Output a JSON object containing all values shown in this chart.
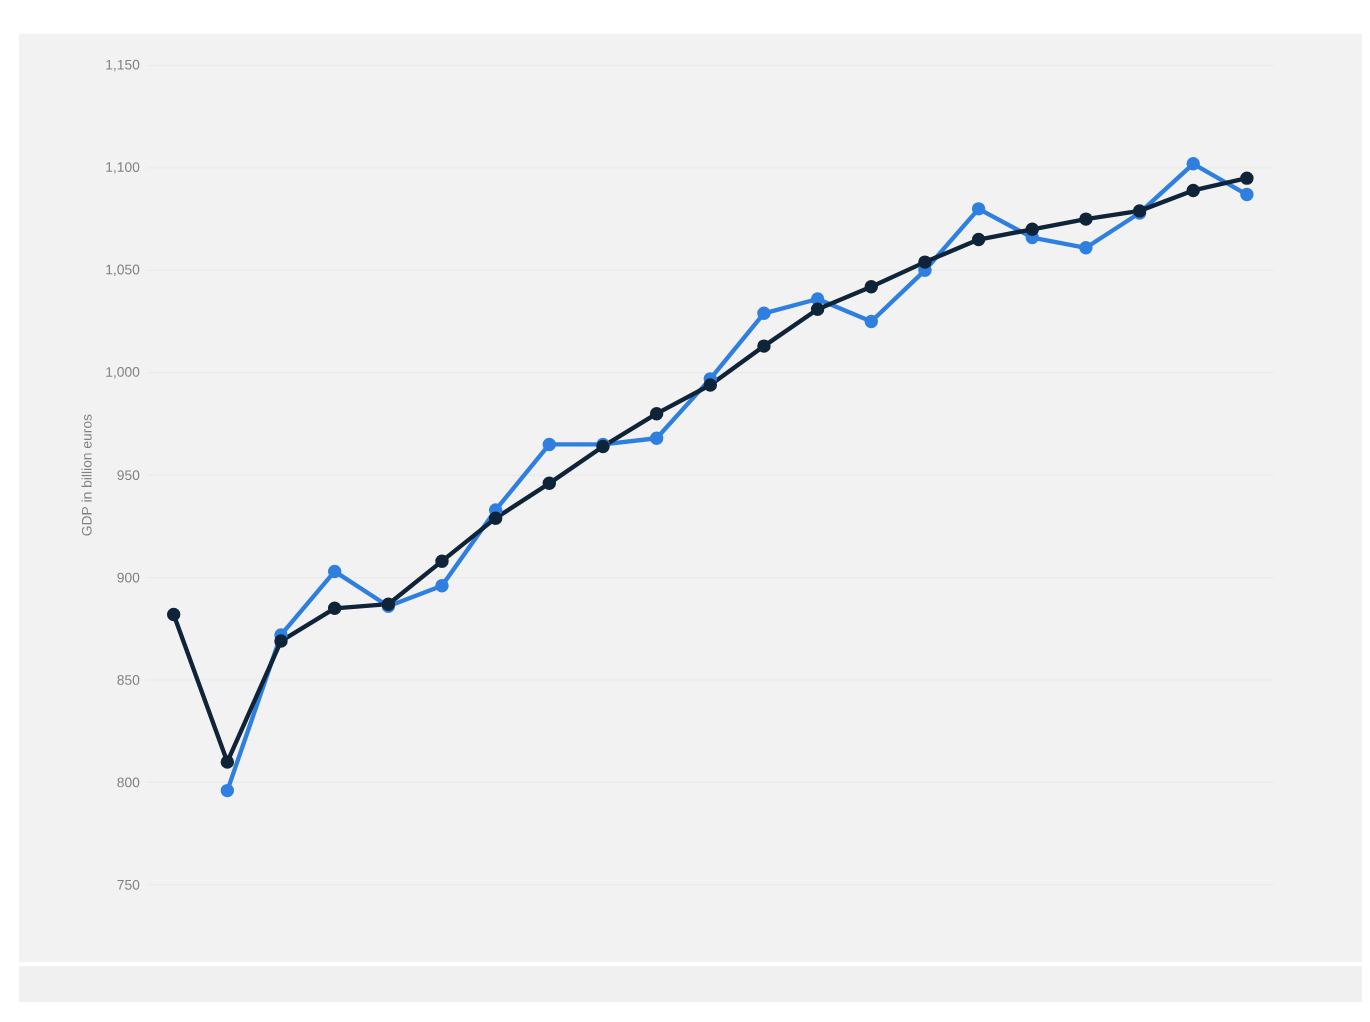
{
  "chart_data": {
    "type": "line",
    "ylabel": "GDP in billion euros",
    "categories": [
      null,
      null,
      null,
      null,
      null,
      null,
      null,
      null,
      null,
      null,
      null,
      null,
      null,
      null,
      null,
      null,
      null,
      null,
      null,
      null,
      null
    ],
    "series": [
      {
        "color": "#2f7fe0",
        "values": [
          null,
          796,
          872,
          903,
          886,
          896,
          933,
          965,
          965,
          968,
          997,
          1029,
          1036,
          1025,
          1050,
          1080,
          1066,
          1061,
          1078,
          1102,
          1087
        ]
      },
      {
        "color": "#0f2438",
        "values": [
          882,
          810,
          869,
          885,
          887,
          908,
          929,
          946,
          964,
          980,
          994,
          1013,
          1031,
          1042,
          1054,
          1065,
          1070,
          1075,
          1079,
          1089,
          1095
        ]
      }
    ],
    "ylim": [
      750,
      1150
    ],
    "yticks": [
      750,
      800,
      850,
      900,
      950,
      {
        "value": 1000,
        "label": "1,000"
      },
      {
        "value": 1050,
        "label": "1,050"
      },
      {
        "value": 1100,
        "label": "1,100"
      },
      {
        "value": 1150,
        "label": "1,150"
      }
    ],
    "grid": "y",
    "marker": "circle",
    "line_style": "solid",
    "tick_labels": "y"
  }
}
